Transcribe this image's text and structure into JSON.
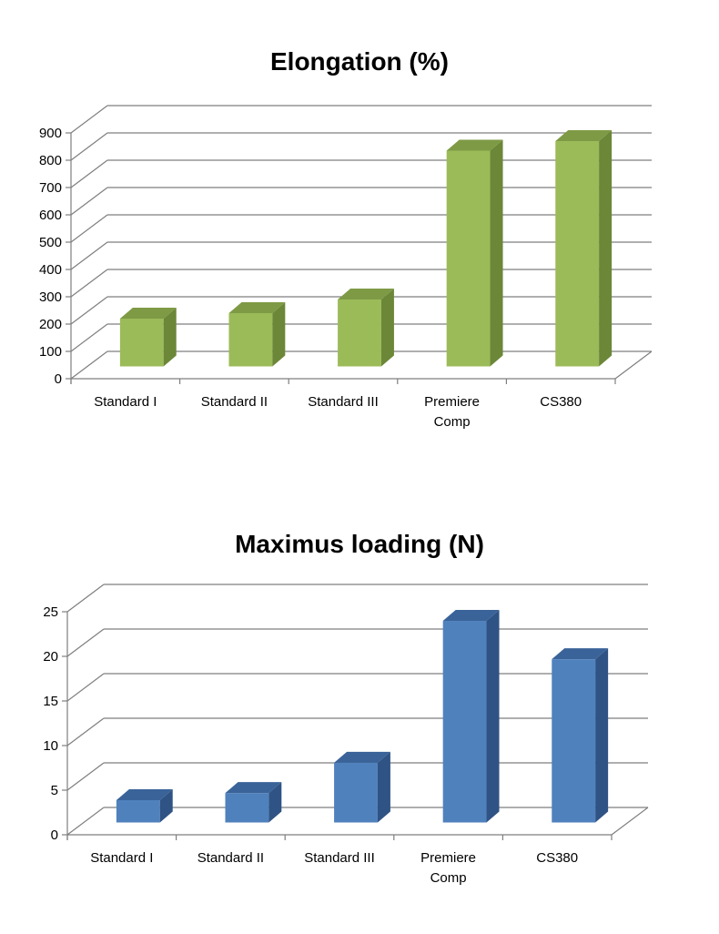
{
  "chart_data": [
    {
      "type": "bar",
      "title": "Elongation (%)",
      "categories": [
        "Standard I",
        "Standard II",
        "Standard III",
        "Premiere Comp",
        "CS380"
      ],
      "category_lines": [
        [
          "Standard I"
        ],
        [
          "Standard II"
        ],
        [
          "Standard III"
        ],
        [
          "Premiere",
          "Comp"
        ],
        [
          "CS380"
        ]
      ],
      "values": [
        175,
        195,
        245,
        790,
        825
      ],
      "ylim": [
        0,
        900
      ],
      "yticks": [
        "0",
        "100",
        "200",
        "300",
        "400",
        "500",
        "600",
        "700",
        "800",
        "900"
      ],
      "grid": true,
      "style": "3d-column",
      "colors": {
        "front": "#9bbb59",
        "side": "#6b8737",
        "top": "#7e9a45"
      }
    },
    {
      "type": "bar",
      "title": "Maximus loading (N)",
      "categories": [
        "Standard I",
        "Standard II",
        "Standard III",
        "Premiere Comp",
        "CS380"
      ],
      "category_lines": [
        [
          "Standard I"
        ],
        [
          "Standard II"
        ],
        [
          "Standard III"
        ],
        [
          "Premiere",
          "Comp"
        ],
        [
          "CS380"
        ]
      ],
      "values": [
        2.5,
        3.3,
        6.7,
        22.6,
        18.3
      ],
      "ylim": [
        0,
        25
      ],
      "yticks": [
        "0",
        "5",
        "10",
        "15",
        "20",
        "25"
      ],
      "grid": true,
      "style": "3d-column",
      "colors": {
        "front": "#4f81bd",
        "side": "#2f5384",
        "top": "#3a6399"
      }
    }
  ]
}
